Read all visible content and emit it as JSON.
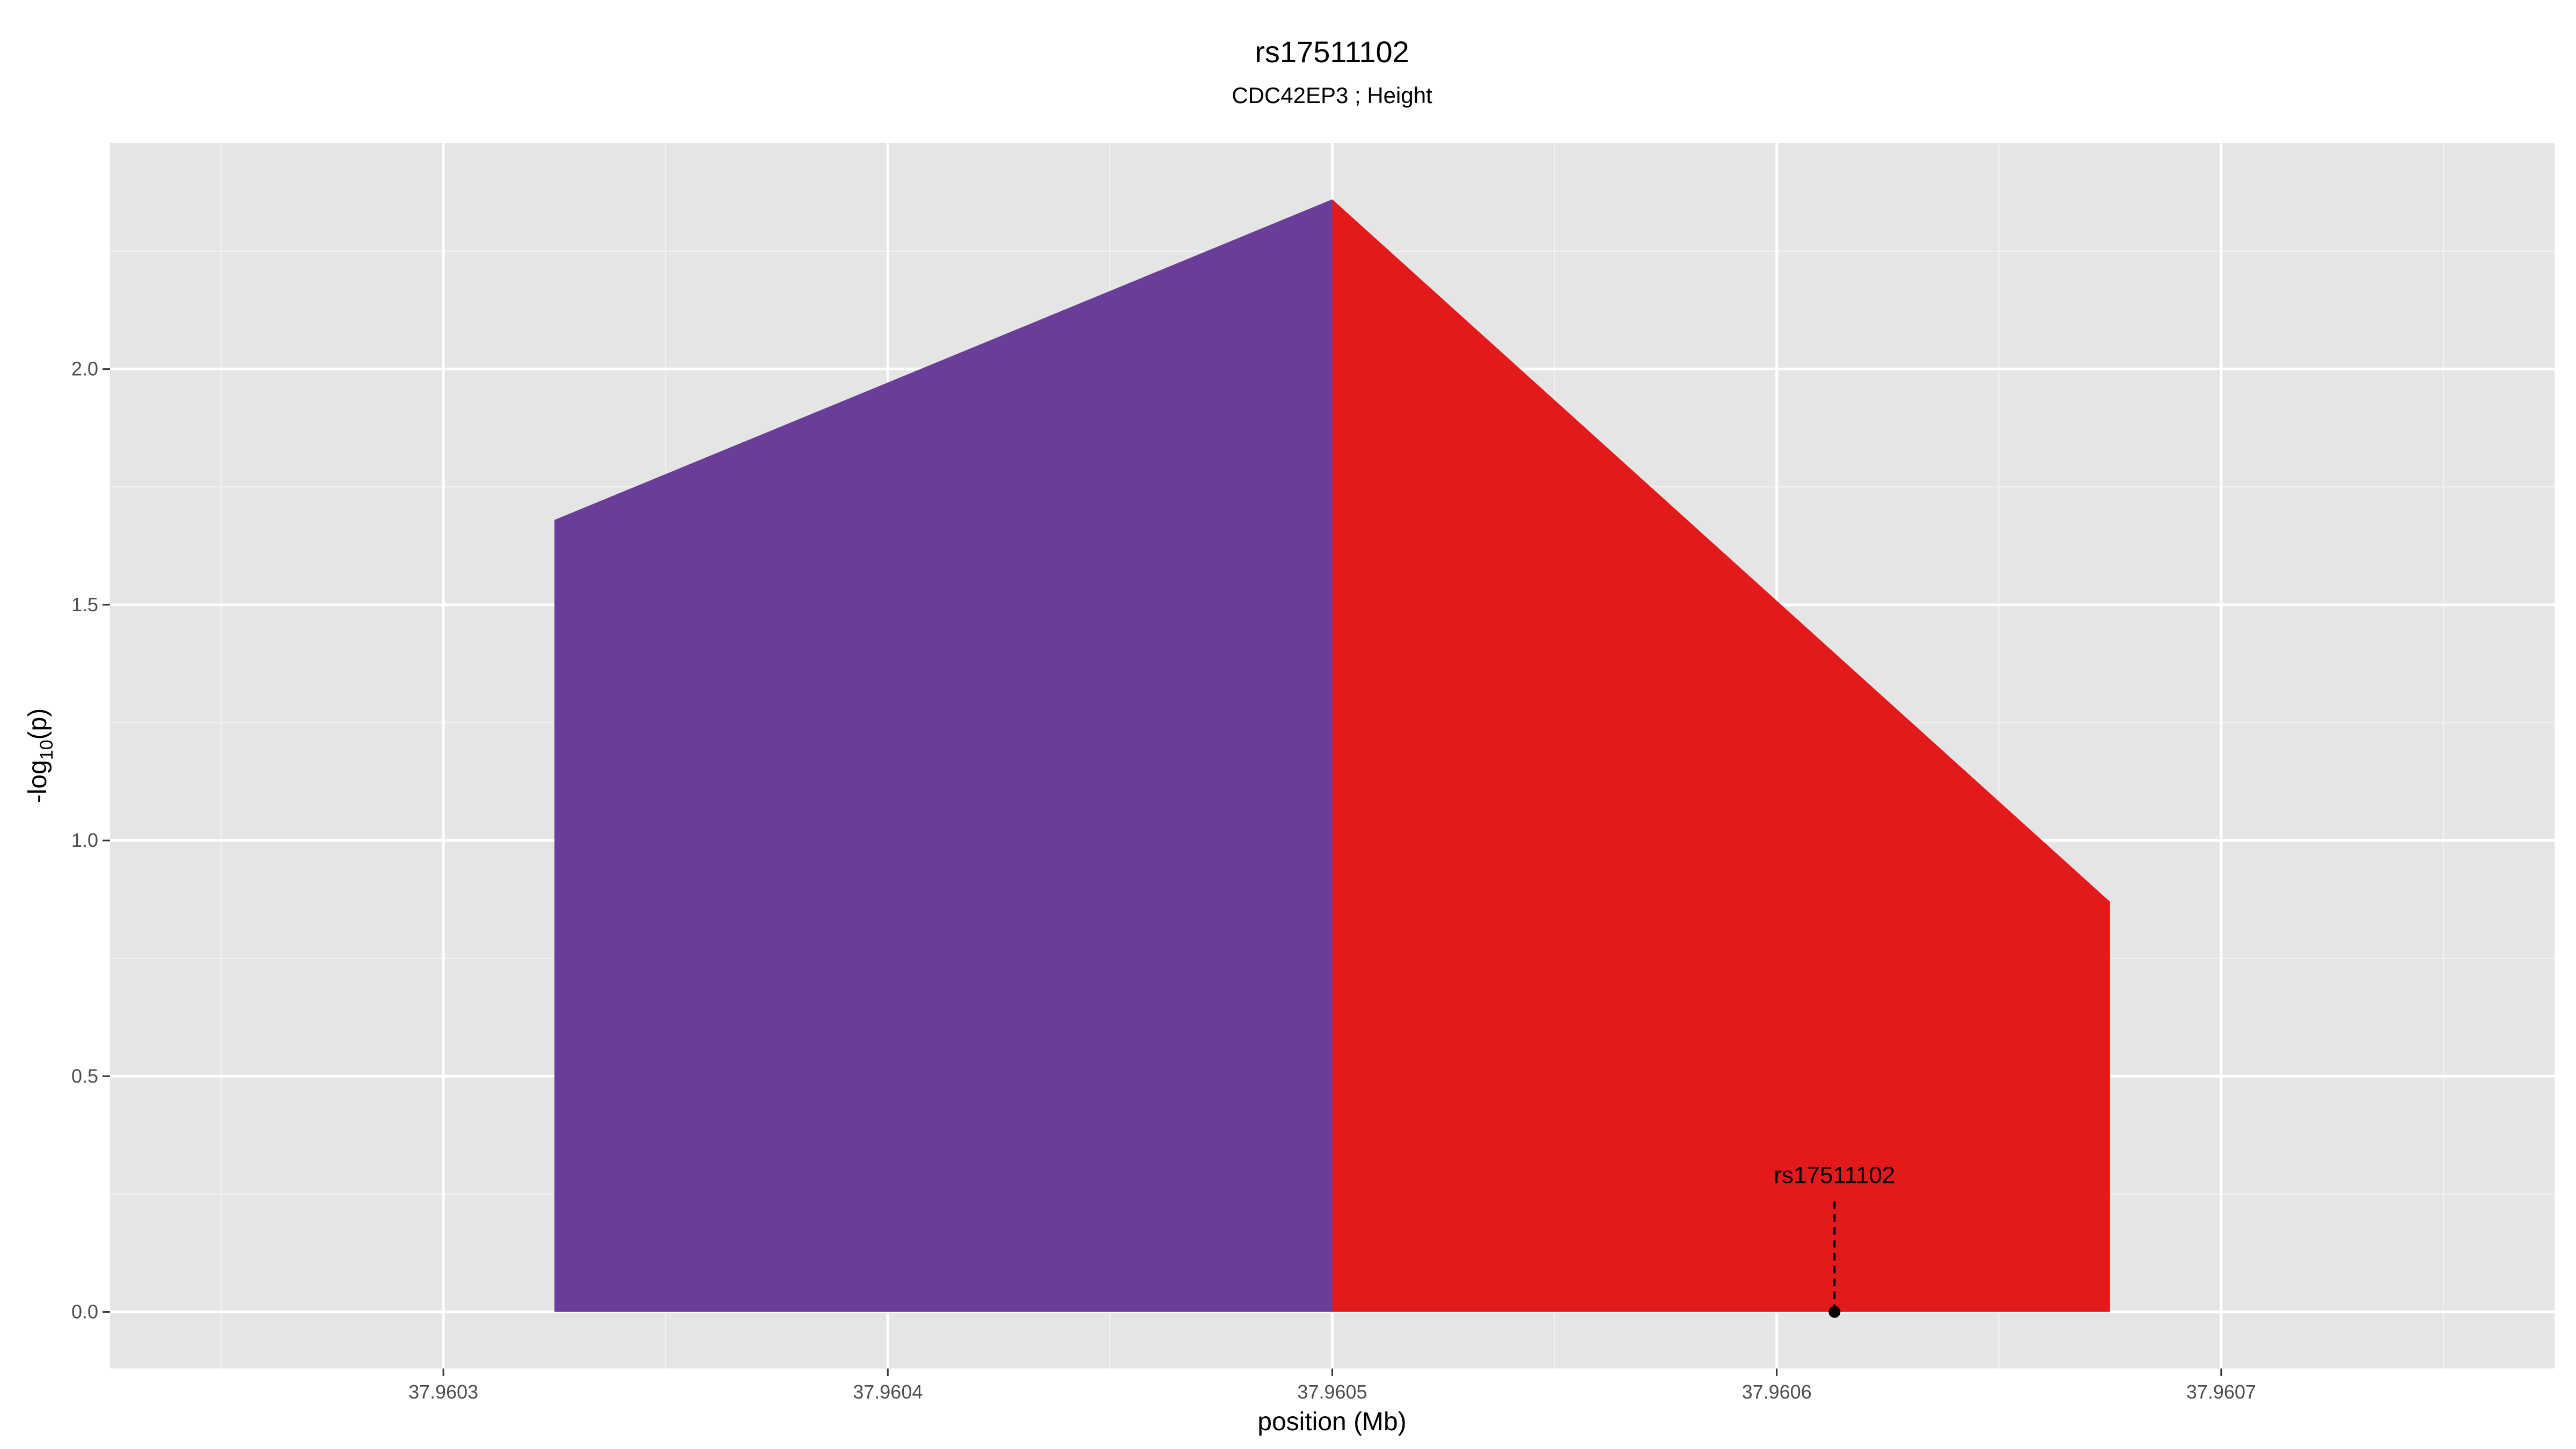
{
  "chart_data": {
    "type": "area",
    "title": "rs17511102",
    "subtitle": "CDC42EP3 ; Height",
    "xlabel": "position (Mb)",
    "ylabel_main": "-log",
    "ylabel_sub": "10",
    "ylabel_tail": "(p)",
    "xlim": [
      37.960225,
      37.960775
    ],
    "ylim": [
      -0.12,
      2.48
    ],
    "x_ticks": [
      37.9603,
      37.9604,
      37.9605,
      37.9606,
      37.9607
    ],
    "x_tick_labels": [
      "37.9603",
      "37.9604",
      "37.9605",
      "37.9606",
      "37.9607"
    ],
    "y_ticks": [
      0.0,
      0.5,
      1.0,
      1.5,
      2.0
    ],
    "y_tick_labels": [
      "0.0",
      "0.5",
      "1.0",
      "1.5",
      "2.0"
    ],
    "grid": true,
    "series": [
      {
        "color": "#6a3d9a",
        "x": [
          37.960325,
          37.9605
        ],
        "y": [
          1.68,
          2.36
        ]
      },
      {
        "color": "#e31a1c",
        "x": [
          37.9605,
          37.960675
        ],
        "y": [
          2.36,
          0.87
        ]
      }
    ],
    "annotation": {
      "label": "rs17511102",
      "x": 37.960613,
      "y": 0.0
    }
  },
  "colors": {
    "panel": "#e5e5e5",
    "grid_major": "#ffffff",
    "marker": "#000000"
  }
}
